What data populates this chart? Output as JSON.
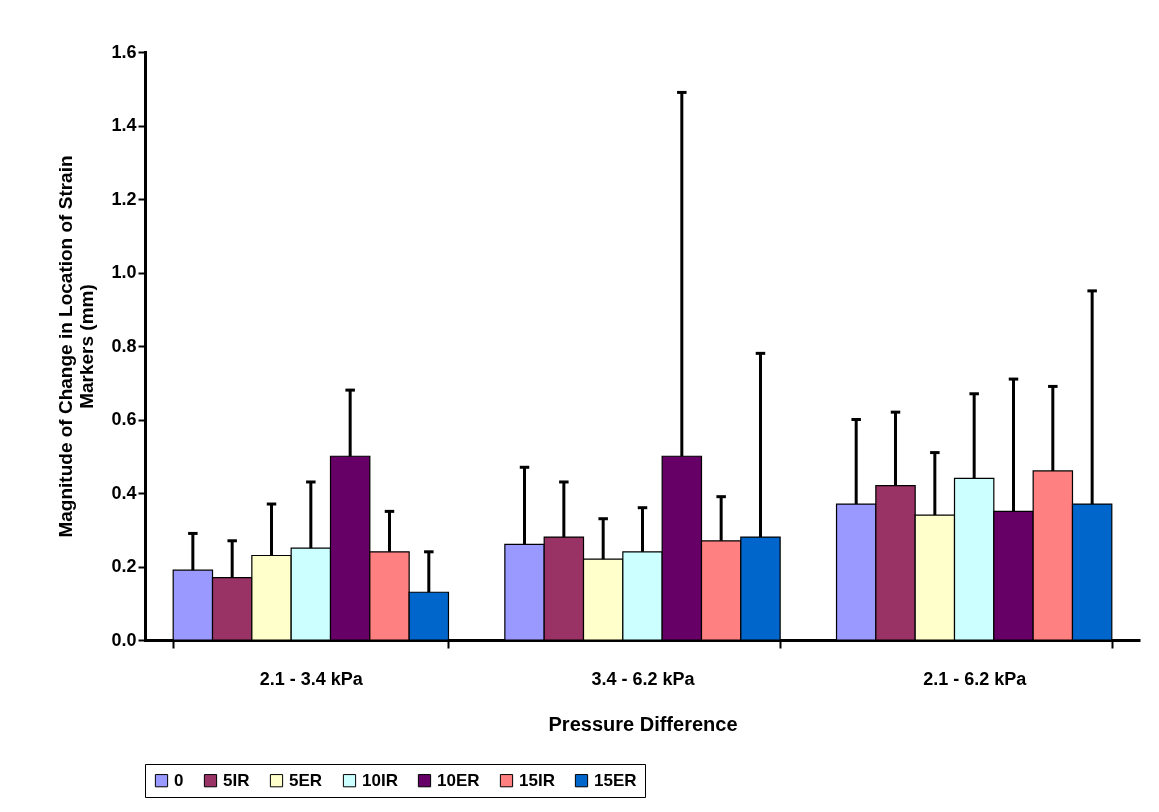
{
  "chart_data": {
    "type": "bar",
    "xlabel": "Pressure Difference",
    "ylabel": "Magnitude of Change in Location of Strain Markers (mm)",
    "categories": [
      "2.1 - 3.4 kPa",
      "3.4 - 6.2 kPa",
      "2.1 - 6.2 kPa"
    ],
    "series": [
      {
        "name": "0",
        "color": "#9999ff",
        "values": [
          0.19,
          0.26,
          0.37
        ],
        "errors": [
          [
            0.19,
            0.29
          ],
          [
            0.26,
            0.47
          ],
          [
            0.37,
            0.6
          ]
        ]
      },
      {
        "name": "5IR",
        "color": "#993366",
        "values": [
          0.17,
          0.28,
          0.42
        ],
        "errors": [
          [
            0.17,
            0.27
          ],
          [
            0.28,
            0.43
          ],
          [
            0.42,
            0.62
          ]
        ]
      },
      {
        "name": "5ER",
        "color": "#ffffcc",
        "values": [
          0.23,
          0.22,
          0.34
        ],
        "errors": [
          [
            0.23,
            0.37
          ],
          [
            0.22,
            0.33
          ],
          [
            0.34,
            0.51
          ]
        ]
      },
      {
        "name": "10IR",
        "color": "#ccffff",
        "values": [
          0.25,
          0.24,
          0.44
        ],
        "errors": [
          [
            0.25,
            0.43
          ],
          [
            0.24,
            0.36
          ],
          [
            0.44,
            0.67
          ]
        ]
      },
      {
        "name": "10ER",
        "color": "#660066",
        "values": [
          0.5,
          0.5,
          0.35
        ],
        "errors": [
          [
            0.5,
            0.68
          ],
          [
            0.5,
            1.49
          ],
          [
            0.35,
            0.71
          ]
        ]
      },
      {
        "name": "15IR",
        "color": "#ff8080",
        "values": [
          0.24,
          0.27,
          0.46
        ],
        "errors": [
          [
            0.24,
            0.35
          ],
          [
            0.27,
            0.39
          ],
          [
            0.46,
            0.69
          ]
        ]
      },
      {
        "name": "15ER",
        "color": "#0066cc",
        "values": [
          0.13,
          0.28,
          0.37
        ],
        "errors": [
          [
            0.13,
            0.24
          ],
          [
            0.28,
            0.78
          ],
          [
            0.37,
            0.95
          ]
        ]
      }
    ],
    "ylim": [
      0,
      1.6
    ],
    "yticks": [
      {
        "value": 0,
        "label": "0.0"
      },
      0.2,
      0.4,
      0.6,
      0.8,
      {
        "value": 1,
        "label": "1.0"
      },
      1.2,
      1.4,
      1.6
    ],
    "grid": false,
    "legend": "bottom"
  }
}
